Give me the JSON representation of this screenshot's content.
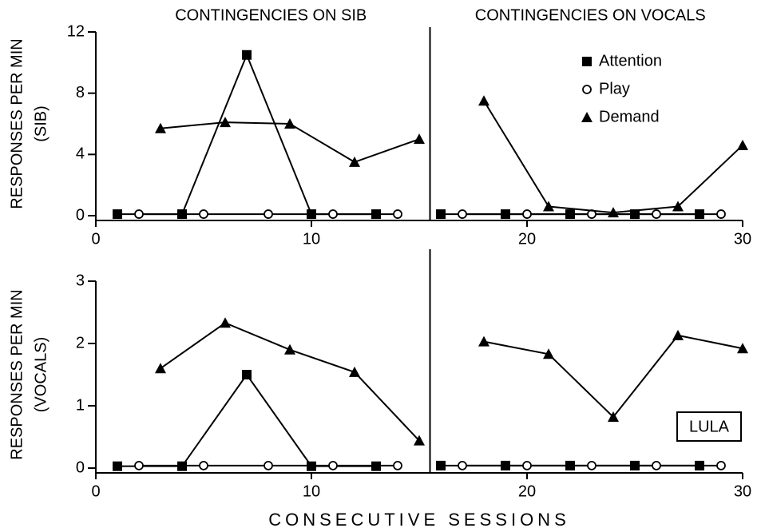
{
  "chart_data": [
    {
      "type": "line",
      "phase_labels": [
        "CONTINGENCIES ON SIB",
        "CONTINGENCIES ON VOCALS"
      ],
      "phase_change": 15.5,
      "ylabel": [
        "RESPONSES PER MIN",
        "(SIB)"
      ],
      "xlim": [
        0,
        30
      ],
      "xticks": [
        0,
        10,
        20,
        30
      ],
      "ylim": [
        0,
        12
      ],
      "yticks": [
        0,
        4,
        8,
        12
      ],
      "legend": "upper right",
      "series": [
        {
          "name": "Attention",
          "color": "#000000",
          "marker": "square",
          "x": [
            1,
            4,
            7,
            10,
            13,
            16,
            19,
            22,
            25,
            28
          ],
          "values": [
            0.1,
            0.1,
            10.5,
            0.1,
            0.1,
            0.1,
            0.1,
            0.1,
            0.1,
            0.1
          ]
        },
        {
          "name": "Play",
          "color": "#000000",
          "marker": "circle",
          "x": [
            2,
            5,
            8,
            11,
            14,
            17,
            20,
            23,
            26,
            29
          ],
          "values": [
            0.1,
            0.1,
            0.1,
            0.1,
            0.1,
            0.1,
            0.1,
            0.1,
            0.1,
            0.1
          ]
        },
        {
          "name": "Demand",
          "color": "#000000",
          "marker": "triangle",
          "x": [
            3,
            6,
            9,
            12,
            15,
            18,
            21,
            24,
            27,
            30
          ],
          "values": [
            5.7,
            6.1,
            6.0,
            3.5,
            5.0,
            7.5,
            0.6,
            0.2,
            0.6,
            4.6
          ]
        }
      ]
    },
    {
      "type": "line",
      "phase_change": 15.5,
      "ylabel": [
        "RESPONSES PER MIN",
        "(VOCALS)"
      ],
      "xlabel": "CONSECUTIVE SESSIONS",
      "annotation": "LULA",
      "xlim": [
        0,
        30
      ],
      "xticks": [
        0,
        10,
        20,
        30
      ],
      "ylim": [
        0,
        3
      ],
      "yticks": [
        0,
        1,
        2,
        3
      ],
      "series": [
        {
          "color": "#000000",
          "marker": "square",
          "x": [
            1,
            4,
            7,
            10,
            13,
            16,
            19,
            22,
            25,
            28
          ],
          "values": [
            0.03,
            0.03,
            1.5,
            0.03,
            0.03,
            0.04,
            0.04,
            0.04,
            0.04,
            0.04
          ]
        },
        {
          "color": "#000000",
          "marker": "circle",
          "x": [
            2,
            5,
            8,
            11,
            14,
            17,
            20,
            23,
            26,
            29
          ],
          "values": [
            0.04,
            0.04,
            0.04,
            0.04,
            0.04,
            0.04,
            0.04,
            0.04,
            0.04,
            0.04
          ]
        },
        {
          "color": "#000000",
          "marker": "triangle",
          "x": [
            3,
            6,
            9,
            12,
            15,
            18,
            21,
            24,
            27,
            30
          ],
          "values": [
            1.6,
            2.33,
            1.9,
            1.54,
            0.44,
            2.03,
            1.83,
            0.82,
            2.13,
            1.92
          ]
        }
      ]
    }
  ]
}
